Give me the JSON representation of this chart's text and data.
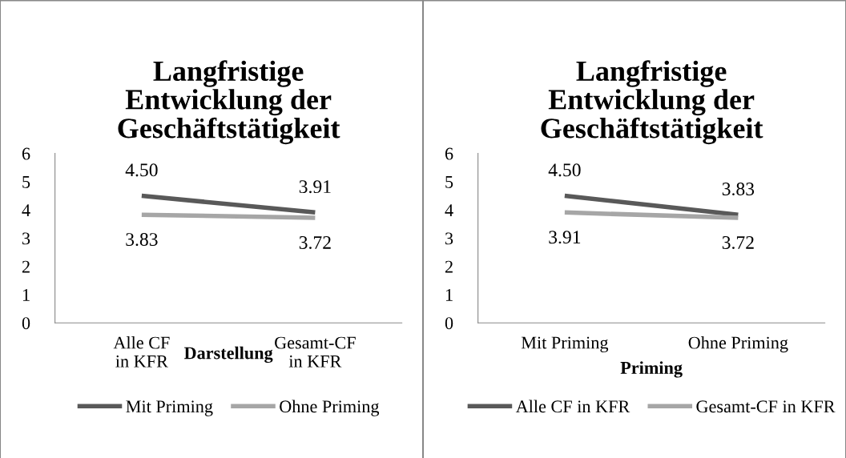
{
  "chart_data": [
    {
      "type": "line",
      "title": "Langfristige\nEntwicklung der\nGeschäftstätigkeit",
      "xlabel": "Darstellung",
      "categories": [
        "Alle CF\nin KFR",
        "Gesamt-CF\nin KFR"
      ],
      "series": [
        {
          "name": "Mit Priming",
          "color": "#595959",
          "values": [
            4.5,
            3.91
          ],
          "value_labels": [
            "4.50",
            "3.91"
          ]
        },
        {
          "name": "Ohne Priming",
          "color": "#a6a6a6",
          "values": [
            3.83,
            3.72
          ],
          "value_labels": [
            "3.83",
            "3.72"
          ]
        }
      ],
      "ylim": [
        0,
        6
      ],
      "yticks": [
        0,
        1,
        2,
        3,
        4,
        5,
        6
      ],
      "legend": "bottom",
      "grid": false,
      "marker": "none"
    },
    {
      "type": "line",
      "title": "Langfristige\nEntwicklung der\nGeschäftstätigkeit",
      "xlabel": "Priming",
      "categories": [
        "Mit Priming",
        "Ohne Priming"
      ],
      "series": [
        {
          "name": "Alle CF in KFR",
          "color": "#595959",
          "values": [
            4.5,
            3.83
          ],
          "value_labels": [
            "4.50",
            "3.83"
          ]
        },
        {
          "name": "Gesamt-CF in KFR",
          "color": "#a6a6a6",
          "values": [
            3.91,
            3.72
          ],
          "value_labels": [
            "3.91",
            "3.72"
          ]
        }
      ],
      "ylim": [
        0,
        6
      ],
      "yticks": [
        0,
        1,
        2,
        3,
        4,
        5,
        6
      ],
      "legend": "bottom",
      "grid": false,
      "marker": "none"
    }
  ]
}
